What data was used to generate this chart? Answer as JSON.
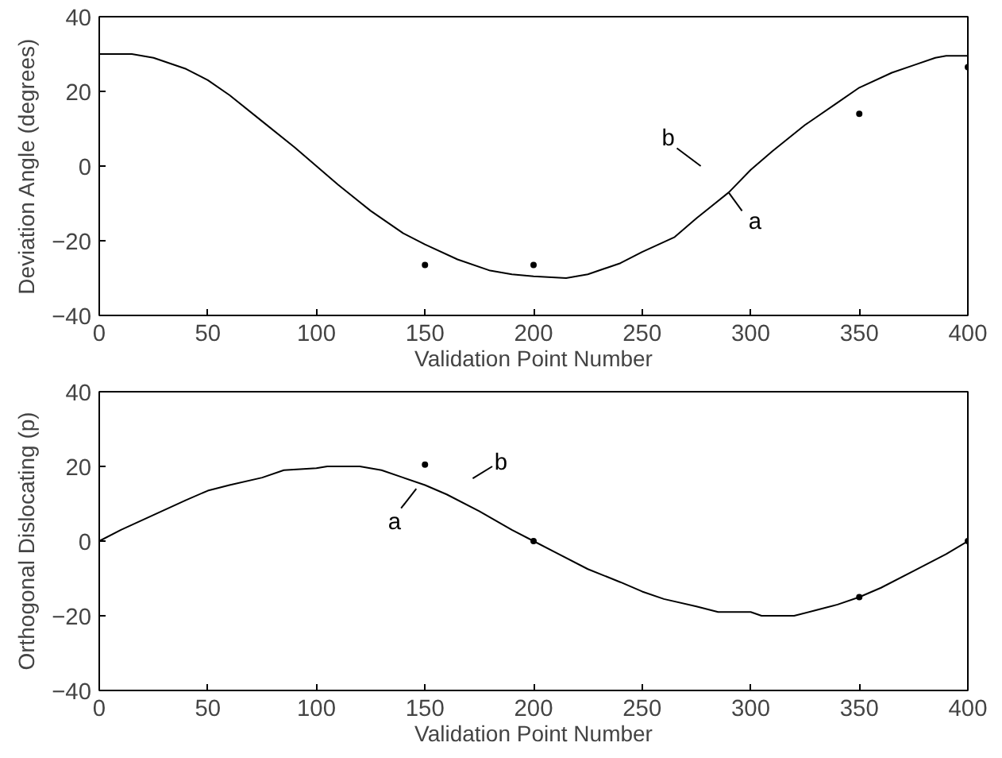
{
  "chart_data": [
    {
      "type": "line",
      "xlabel": "Validation Point Number",
      "ylabel": "Deviation Angle (degrees)",
      "xlim": [
        0,
        400
      ],
      "ylim": [
        -40,
        40
      ],
      "xticks": [
        0,
        50,
        100,
        150,
        200,
        250,
        300,
        350,
        400
      ],
      "yticks": [
        -40,
        -20,
        0,
        20,
        40
      ],
      "grid": false,
      "series": [
        {
          "color": "#000000",
          "marker": "none",
          "x": [
            0,
            15,
            25,
            40,
            50,
            60,
            75,
            90,
            100,
            110,
            125,
            140,
            150,
            165,
            180,
            190,
            200,
            215,
            225,
            240,
            250,
            265,
            275,
            290,
            300,
            310,
            325,
            340,
            350,
            365,
            375,
            385,
            390,
            400
          ],
          "values": [
            30,
            30,
            29,
            26,
            23,
            19,
            12,
            5,
            0,
            -5,
            -12,
            -18,
            -21,
            -25,
            -28,
            -29,
            -29.5,
            -30,
            -29,
            -26,
            -23,
            -19,
            -14,
            -7,
            -1,
            4,
            11,
            17,
            21,
            25,
            27,
            29,
            29.5,
            29.5
          ]
        },
        {
          "type": "scatter",
          "color": "#000000",
          "marker": "circle",
          "x": [
            150,
            200,
            350,
            400
          ],
          "values": [
            -26.5,
            -26.5,
            14,
            26.5
          ]
        }
      ],
      "annotations": [
        "a",
        "b"
      ]
    },
    {
      "type": "line",
      "xlabel": "Validation Point Number",
      "ylabel": "Orthogonal Dislocating (p)",
      "xlim": [
        0,
        400
      ],
      "ylim": [
        -40,
        40
      ],
      "xticks": [
        0,
        50,
        100,
        150,
        200,
        250,
        300,
        350,
        400
      ],
      "yticks": [
        -40,
        -20,
        0,
        20,
        40
      ],
      "grid": false,
      "series": [
        {
          "color": "#000000",
          "marker": "none",
          "x": [
            0,
            10,
            25,
            40,
            50,
            60,
            75,
            85,
            100,
            105,
            120,
            130,
            140,
            150,
            160,
            175,
            190,
            200,
            210,
            225,
            240,
            250,
            260,
            275,
            285,
            300,
            305,
            320,
            330,
            340,
            350,
            360,
            375,
            390,
            400
          ],
          "values": [
            0,
            3,
            7,
            11,
            13.5,
            15,
            17,
            19,
            19.5,
            20,
            20,
            19,
            17,
            15,
            12.5,
            8,
            3,
            0,
            -3,
            -7.5,
            -11,
            -13.5,
            -15.5,
            -17.5,
            -19,
            -19,
            -20,
            -20,
            -18.5,
            -17,
            -15,
            -12.5,
            -8,
            -3.5,
            0
          ]
        },
        {
          "type": "scatter",
          "color": "#000000",
          "marker": "circle",
          "x": [
            150,
            200,
            350,
            400
          ],
          "values": [
            20.5,
            0,
            -15,
            0
          ]
        }
      ],
      "annotations": [
        "a",
        "b"
      ]
    }
  ]
}
